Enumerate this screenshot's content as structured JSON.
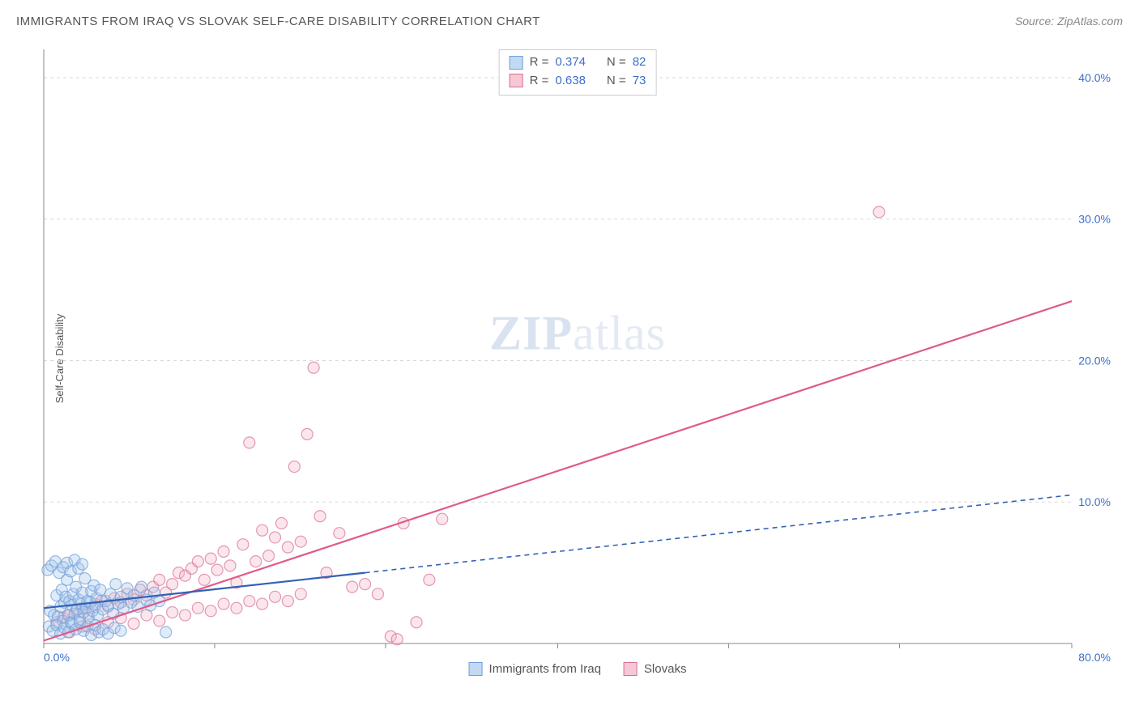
{
  "title": "IMMIGRANTS FROM IRAQ VS SLOVAK SELF-CARE DISABILITY CORRELATION CHART",
  "source": "Source: ZipAtlas.com",
  "watermark_bold": "ZIP",
  "watermark_light": "atlas",
  "y_axis_label": "Self-Care Disability",
  "chart": {
    "type": "scatter",
    "background_color": "#ffffff",
    "grid_color": "#d9d9d9",
    "grid_dash": "4,4",
    "x_axis": {
      "min": 0,
      "max": 80,
      "tick_step": 20,
      "unit": "%",
      "label_min": "0.0%",
      "label_max": "80.0%",
      "label_color": "#3b6fc9",
      "label_fontsize": 14,
      "tick_positions": [
        0,
        13.3,
        26.6,
        40,
        53.3,
        66.6,
        80
      ]
    },
    "y_axis": {
      "min": 0,
      "max": 42,
      "gridlines": [
        10,
        20,
        30,
        40
      ],
      "unit": "%",
      "labels": [
        "10.0%",
        "20.0%",
        "30.0%",
        "40.0%"
      ],
      "label_color": "#3b6fc9",
      "label_fontsize": 14
    },
    "marker_radius": 7,
    "marker_opacity": 0.35,
    "marker_stroke_width": 1.2,
    "correlation_legend": [
      {
        "series": "iraq",
        "r_label": "R =",
        "r": "0.374",
        "n_label": "N =",
        "n": "82"
      },
      {
        "series": "slovak",
        "r_label": "R =",
        "r": "0.638",
        "n_label": "N =",
        "n": "73"
      }
    ],
    "bottom_legend": [
      {
        "series": "iraq",
        "label": "Immigrants from Iraq"
      },
      {
        "series": "slovak",
        "label": "Slovaks"
      }
    ],
    "series": {
      "iraq": {
        "marker_fill": "#a7c7ec",
        "marker_stroke": "#6f9fd8",
        "trend_color": "#3262b5",
        "trend_width": 2.2,
        "trend_solid_end_x": 25,
        "trend_dash_end_x": 80,
        "trend_dash": "6,5",
        "intercept": 2.5,
        "slope": 0.1,
        "points": [
          [
            0.5,
            2.3
          ],
          [
            0.8,
            2.0
          ],
          [
            1.0,
            3.4
          ],
          [
            1.1,
            1.9
          ],
          [
            1.3,
            2.6
          ],
          [
            1.4,
            3.8
          ],
          [
            1.5,
            1.6
          ],
          [
            1.6,
            2.9
          ],
          [
            1.7,
            3.3
          ],
          [
            1.8,
            4.5
          ],
          [
            1.9,
            2.0
          ],
          [
            2.0,
            3.0
          ],
          [
            2.1,
            1.5
          ],
          [
            2.2,
            2.7
          ],
          [
            2.3,
            3.5
          ],
          [
            2.4,
            2.1
          ],
          [
            2.5,
            4.0
          ],
          [
            2.6,
            2.4
          ],
          [
            2.7,
            3.1
          ],
          [
            2.8,
            1.7
          ],
          [
            2.9,
            2.8
          ],
          [
            3.0,
            3.6
          ],
          [
            3.1,
            2.2
          ],
          [
            3.2,
            4.6
          ],
          [
            3.3,
            2.5
          ],
          [
            3.4,
            3.0
          ],
          [
            3.5,
            1.8
          ],
          [
            3.6,
            2.9
          ],
          [
            3.7,
            3.7
          ],
          [
            3.8,
            2.3
          ],
          [
            3.9,
            4.1
          ],
          [
            4.0,
            2.6
          ],
          [
            4.1,
            3.2
          ],
          [
            4.2,
            2.0
          ],
          [
            4.4,
            3.8
          ],
          [
            4.6,
            2.4
          ],
          [
            4.8,
            3.0
          ],
          [
            5.0,
            2.7
          ],
          [
            5.2,
            3.5
          ],
          [
            5.4,
            2.1
          ],
          [
            5.6,
            4.2
          ],
          [
            5.8,
            2.8
          ],
          [
            6.0,
            3.3
          ],
          [
            6.2,
            2.5
          ],
          [
            6.5,
            3.9
          ],
          [
            6.8,
            2.9
          ],
          [
            7.0,
            3.4
          ],
          [
            7.3,
            2.6
          ],
          [
            7.6,
            4.0
          ],
          [
            8.0,
            3.1
          ],
          [
            8.3,
            2.7
          ],
          [
            8.6,
            3.6
          ],
          [
            9.0,
            3.0
          ],
          [
            9.5,
            0.8
          ],
          [
            0.3,
            5.2
          ],
          [
            0.6,
            5.5
          ],
          [
            0.9,
            5.8
          ],
          [
            1.2,
            5.0
          ],
          [
            1.5,
            5.4
          ],
          [
            1.8,
            5.7
          ],
          [
            2.1,
            5.1
          ],
          [
            2.4,
            5.9
          ],
          [
            2.7,
            5.3
          ],
          [
            3.0,
            5.6
          ],
          [
            0.4,
            1.2
          ],
          [
            0.7,
            0.9
          ],
          [
            1.0,
            1.3
          ],
          [
            1.3,
            0.7
          ],
          [
            1.6,
            1.1
          ],
          [
            1.9,
            0.8
          ],
          [
            2.2,
            1.4
          ],
          [
            2.5,
            1.0
          ],
          [
            2.8,
            1.5
          ],
          [
            3.1,
            0.9
          ],
          [
            3.4,
            1.2
          ],
          [
            3.7,
            0.6
          ],
          [
            4.0,
            1.3
          ],
          [
            4.3,
            0.8
          ],
          [
            4.6,
            1.0
          ],
          [
            5.0,
            0.7
          ],
          [
            5.5,
            1.1
          ],
          [
            6.0,
            0.9
          ]
        ]
      },
      "slovak": {
        "marker_fill": "#f4b8c9",
        "marker_stroke": "#d77094",
        "trend_color": "#e05a8a",
        "trend_width": 2.2,
        "trend_solid_end_x": 80,
        "trend_dash_end_x": 80,
        "trend_dash": "none",
        "intercept": 0.2,
        "slope": 0.3,
        "points": [
          [
            1.0,
            1.5
          ],
          [
            1.5,
            1.8
          ],
          [
            2.0,
            2.0
          ],
          [
            2.5,
            2.3
          ],
          [
            3.0,
            2.5
          ],
          [
            3.5,
            2.1
          ],
          [
            4.0,
            2.8
          ],
          [
            4.5,
            3.0
          ],
          [
            5.0,
            2.6
          ],
          [
            5.5,
            3.2
          ],
          [
            6.0,
            2.9
          ],
          [
            6.5,
            3.5
          ],
          [
            7.0,
            3.1
          ],
          [
            7.5,
            3.8
          ],
          [
            8.0,
            3.4
          ],
          [
            8.5,
            4.0
          ],
          [
            9.0,
            4.5
          ],
          [
            9.5,
            3.6
          ],
          [
            10.0,
            4.2
          ],
          [
            10.5,
            5.0
          ],
          [
            11.0,
            4.8
          ],
          [
            11.5,
            5.3
          ],
          [
            12.0,
            5.8
          ],
          [
            12.5,
            4.5
          ],
          [
            13.0,
            6.0
          ],
          [
            13.5,
            5.2
          ],
          [
            14.0,
            6.5
          ],
          [
            14.5,
            5.5
          ],
          [
            15.0,
            4.3
          ],
          [
            15.5,
            7.0
          ],
          [
            16.0,
            14.2
          ],
          [
            16.5,
            5.8
          ],
          [
            17.0,
            8.0
          ],
          [
            17.5,
            6.2
          ],
          [
            18.0,
            7.5
          ],
          [
            18.5,
            8.5
          ],
          [
            19.0,
            6.8
          ],
          [
            19.5,
            12.5
          ],
          [
            20.0,
            7.2
          ],
          [
            20.5,
            14.8
          ],
          [
            21.0,
            19.5
          ],
          [
            21.5,
            9.0
          ],
          [
            22.0,
            5.0
          ],
          [
            23.0,
            7.8
          ],
          [
            24.0,
            4.0
          ],
          [
            25.0,
            4.2
          ],
          [
            26.0,
            3.5
          ],
          [
            27.0,
            0.5
          ],
          [
            27.5,
            0.3
          ],
          [
            28.0,
            8.5
          ],
          [
            29.0,
            1.5
          ],
          [
            30.0,
            4.5
          ],
          [
            31.0,
            8.8
          ],
          [
            65.0,
            30.5
          ],
          [
            2.0,
            0.8
          ],
          [
            3.0,
            1.2
          ],
          [
            4.0,
            1.0
          ],
          [
            5.0,
            1.5
          ],
          [
            6.0,
            1.8
          ],
          [
            7.0,
            1.4
          ],
          [
            8.0,
            2.0
          ],
          [
            9.0,
            1.6
          ],
          [
            10.0,
            2.2
          ],
          [
            11.0,
            2.0
          ],
          [
            12.0,
            2.5
          ],
          [
            13.0,
            2.3
          ],
          [
            14.0,
            2.8
          ],
          [
            15.0,
            2.5
          ],
          [
            16.0,
            3.0
          ],
          [
            17.0,
            2.8
          ],
          [
            18.0,
            3.3
          ],
          [
            19.0,
            3.0
          ],
          [
            20.0,
            3.5
          ]
        ]
      }
    }
  }
}
